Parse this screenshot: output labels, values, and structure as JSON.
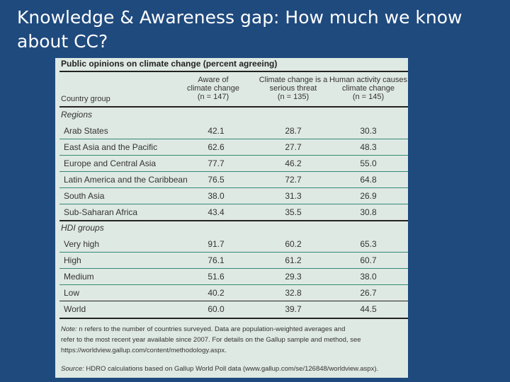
{
  "slide": {
    "title_line1": "Knowledge & Awareness gap: How much we know",
    "title_line2": "about CC?"
  },
  "table": {
    "title": "Public opinions on climate change (percent agreeing)",
    "columns": [
      {
        "label_line1": "Aware of",
        "label_line2": "climate change",
        "n_label": "(n = 147)"
      },
      {
        "label_line1": "Climate change is a",
        "label_line2": "serious threat",
        "n_label": "(n = 135)"
      },
      {
        "label_line1": "Human activity causes",
        "label_line2": "climate change",
        "n_label": "(n = 145)"
      }
    ],
    "row_header": "Country group",
    "groups": [
      {
        "label": "Regions",
        "rows": [
          {
            "name": "Arab States",
            "v1": "42.1",
            "v2": "28.7",
            "v3": "30.3"
          },
          {
            "name": "East Asia and the Pacific",
            "v1": "62.6",
            "v2": "27.7",
            "v3": "48.3"
          },
          {
            "name": "Europe and Central Asia",
            "v1": "77.7",
            "v2": "46.2",
            "v3": "55.0"
          },
          {
            "name": "Latin America and the Caribbean",
            "v1": "76.5",
            "v2": "72.7",
            "v3": "64.8"
          },
          {
            "name": "South Asia",
            "v1": "38.0",
            "v2": "31.3",
            "v3": "26.9"
          },
          {
            "name": "Sub-Saharan Africa",
            "v1": "43.4",
            "v2": "35.5",
            "v3": "30.8"
          }
        ]
      },
      {
        "label": "HDI groups",
        "rows": [
          {
            "name": "Very high",
            "v1": "91.7",
            "v2": "60.2",
            "v3": "65.3"
          },
          {
            "name": "High",
            "v1": "76.1",
            "v2": "61.2",
            "v3": "60.7"
          },
          {
            "name": "Medium",
            "v1": "51.6",
            "v2": "29.3",
            "v3": "38.0"
          },
          {
            "name": "Low",
            "v1": "40.2",
            "v2": "32.8",
            "v3": "26.7"
          }
        ]
      }
    ],
    "world": {
      "name": "World",
      "v1": "60.0",
      "v2": "39.7",
      "v3": "44.5"
    },
    "note_label": "Note:",
    "note_line1": " n refers to the number of countries surveyed. Data are population-weighted averages and",
    "note_line2": "refer to the most recent year available since 2007. For details on the Gallup sample and method, see",
    "note_line3": "https://worldview.gallup.com/content/methodology.aspx.",
    "source_label": "Source:",
    "source_text": " HDRO calculations based on Gallup World Poll data (www.gallup.com/se/126848/worldview.aspx)."
  }
}
